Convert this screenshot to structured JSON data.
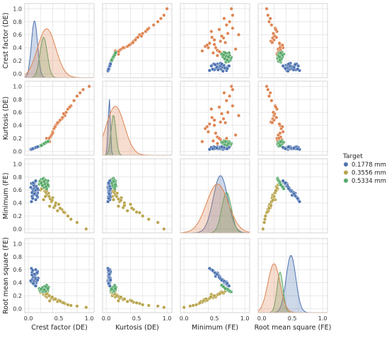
{
  "chart_data": {
    "type": "pairplot",
    "variables": [
      "Crest factor (DE)",
      "Kurtosis (DE)",
      "Minimum (FE)",
      "Root mean square (FE)"
    ],
    "ticks": [
      0.0,
      0.2,
      0.4,
      0.6,
      0.8,
      1.0
    ],
    "xtick_labels": [
      "0.0",
      "0.5",
      "1.0"
    ],
    "ytick_labels": [
      "0.0",
      "0.2",
      "0.4",
      "0.6",
      "0.8",
      "1.0"
    ],
    "range": [
      -0.06,
      1.08
    ],
    "grid": true,
    "legend_placement": "right",
    "legend": {
      "title": "Target",
      "entries": [
        {
          "label": "0.1778 mm",
          "color": "#4c72b0"
        },
        {
          "label": "0.3556 mm",
          "color": "#b8a44c"
        },
        {
          "label": "0.5334 mm",
          "color": "#55a868"
        }
      ]
    },
    "diag_color_map": [
      "#4c72b0",
      "#dd8452",
      "#55a868"
    ],
    "series": [
      {
        "name": "0.1778 mm",
        "color": "#4c72b0",
        "mean": [
          0.1,
          0.05,
          0.6,
          0.48
        ],
        "sd": [
          0.05,
          0.018,
          0.12,
          0.08
        ],
        "points": [
          [
            0.08,
            0.05,
            0.52,
            0.5
          ],
          [
            0.12,
            0.06,
            0.6,
            0.47
          ],
          [
            0.05,
            0.04,
            0.7,
            0.41
          ],
          [
            0.15,
            0.07,
            0.55,
            0.55
          ],
          [
            0.1,
            0.05,
            0.63,
            0.44
          ],
          [
            0.07,
            0.04,
            0.48,
            0.58
          ],
          [
            0.13,
            0.06,
            0.66,
            0.4
          ],
          [
            0.09,
            0.05,
            0.58,
            0.5
          ],
          [
            0.11,
            0.05,
            0.72,
            0.36
          ],
          [
            0.06,
            0.04,
            0.5,
            0.56
          ],
          [
            0.14,
            0.07,
            0.62,
            0.45
          ],
          [
            0.1,
            0.05,
            0.55,
            0.52
          ],
          [
            0.08,
            0.04,
            0.68,
            0.42
          ],
          [
            0.12,
            0.06,
            0.45,
            0.6
          ],
          [
            0.16,
            0.07,
            0.6,
            0.47
          ],
          [
            0.04,
            0.03,
            0.64,
            0.43
          ],
          [
            0.11,
            0.05,
            0.57,
            0.51
          ],
          [
            0.09,
            0.05,
            0.7,
            0.38
          ],
          [
            0.13,
            0.06,
            0.53,
            0.54
          ],
          [
            0.07,
            0.04,
            0.61,
            0.46
          ],
          [
            0.1,
            0.05,
            0.66,
            0.41
          ],
          [
            0.15,
            0.07,
            0.49,
            0.57
          ],
          [
            0.08,
            0.04,
            0.59,
            0.49
          ],
          [
            0.12,
            0.06,
            0.74,
            0.35
          ],
          [
            0.06,
            0.04,
            0.56,
            0.52
          ],
          [
            0.1,
            0.05,
            0.63,
            0.45
          ],
          [
            0.14,
            0.06,
            0.51,
            0.55
          ],
          [
            0.09,
            0.05,
            0.67,
            0.42
          ],
          [
            0.11,
            0.05,
            0.58,
            0.48
          ],
          [
            0.05,
            0.03,
            0.42,
            0.62
          ],
          [
            0.13,
            0.06,
            0.65,
            0.43
          ],
          [
            0.1,
            0.05,
            0.54,
            0.53
          ],
          [
            0.08,
            0.04,
            0.71,
            0.39
          ],
          [
            0.12,
            0.06,
            0.6,
            0.46
          ],
          [
            0.07,
            0.04,
            0.47,
            0.59
          ],
          [
            0.15,
            0.07,
            0.62,
            0.44
          ]
        ]
      },
      {
        "name": "0.3556 mm",
        "color": "#b8a44c",
        "mean": [
          0.3,
          0.15,
          0.55,
          0.2
        ],
        "sd": [
          0.15,
          0.15,
          0.18,
          0.1
        ],
        "points": [
          [
            0.25,
            0.12,
            0.45,
            0.22
          ],
          [
            0.3,
            0.15,
            0.52,
            0.18
          ],
          [
            0.45,
            0.3,
            0.4,
            0.15
          ],
          [
            0.2,
            0.08,
            0.6,
            0.25
          ],
          [
            0.35,
            0.2,
            0.35,
            0.12
          ],
          [
            0.55,
            0.45,
            0.3,
            0.1
          ],
          [
            0.28,
            0.1,
            0.5,
            0.2
          ],
          [
            0.4,
            0.25,
            0.48,
            0.17
          ],
          [
            0.22,
            0.09,
            0.62,
            0.26
          ],
          [
            0.6,
            0.55,
            0.25,
            0.08
          ],
          [
            0.33,
            0.18,
            0.55,
            0.21
          ],
          [
            0.5,
            0.4,
            0.38,
            0.13
          ],
          [
            0.27,
            0.11,
            0.58,
            0.23
          ],
          [
            0.38,
            0.22,
            0.42,
            0.16
          ],
          [
            0.65,
            0.6,
            0.2,
            0.06
          ],
          [
            0.31,
            0.14,
            0.65,
            0.24
          ],
          [
            0.42,
            0.28,
            0.33,
            0.14
          ],
          [
            0.24,
            0.09,
            0.7,
            0.28
          ],
          [
            0.7,
            0.7,
            0.15,
            0.05
          ],
          [
            0.36,
            0.2,
            0.46,
            0.19
          ],
          [
            0.29,
            0.13,
            0.56,
            0.22
          ],
          [
            0.48,
            0.35,
            0.28,
            0.11
          ],
          [
            0.26,
            0.1,
            0.63,
            0.25
          ],
          [
            0.8,
            0.85,
            0.1,
            0.04
          ],
          [
            0.34,
            0.17,
            0.5,
            0.2
          ],
          [
            0.44,
            0.3,
            0.36,
            0.15
          ],
          [
            0.23,
            0.08,
            0.68,
            0.27
          ],
          [
            0.52,
            0.42,
            0.32,
            0.12
          ],
          [
            0.39,
            0.24,
            0.44,
            0.18
          ],
          [
            0.95,
            0.95,
            0.0,
            0.02
          ],
          [
            0.3,
            0.14,
            0.59,
            0.23
          ],
          [
            0.58,
            0.5,
            0.26,
            0.09
          ]
        ]
      },
      {
        "name": "0.5334 mm",
        "color": "#55a868",
        "mean": [
          0.25,
          0.12,
          0.7,
          0.3
        ],
        "sd": [
          0.06,
          0.04,
          0.08,
          0.05
        ],
        "points": [
          [
            0.22,
            0.1,
            0.68,
            0.32
          ],
          [
            0.26,
            0.12,
            0.72,
            0.29
          ],
          [
            0.3,
            0.14,
            0.65,
            0.34
          ],
          [
            0.2,
            0.09,
            0.75,
            0.27
          ],
          [
            0.28,
            0.13,
            0.7,
            0.3
          ],
          [
            0.24,
            0.11,
            0.66,
            0.33
          ],
          [
            0.32,
            0.15,
            0.74,
            0.28
          ],
          [
            0.18,
            0.08,
            0.69,
            0.31
          ],
          [
            0.25,
            0.12,
            0.78,
            0.26
          ],
          [
            0.29,
            0.14,
            0.63,
            0.35
          ],
          [
            0.23,
            0.1,
            0.71,
            0.3
          ],
          [
            0.27,
            0.13,
            0.67,
            0.32
          ],
          [
            0.21,
            0.09,
            0.76,
            0.27
          ],
          [
            0.31,
            0.15,
            0.7,
            0.29
          ],
          [
            0.26,
            0.12,
            0.64,
            0.34
          ],
          [
            0.19,
            0.08,
            0.73,
            0.28
          ],
          [
            0.28,
            0.13,
            0.68,
            0.31
          ],
          [
            0.24,
            0.11,
            0.77,
            0.26
          ],
          [
            0.33,
            0.16,
            0.66,
            0.33
          ],
          [
            0.22,
            0.1,
            0.72,
            0.3
          ],
          [
            0.27,
            0.12,
            0.69,
            0.31
          ],
          [
            0.25,
            0.11,
            0.74,
            0.28
          ],
          [
            0.3,
            0.14,
            0.62,
            0.36
          ],
          [
            0.2,
            0.09,
            0.7,
            0.3
          ],
          [
            0.28,
            0.13,
            0.75,
            0.27
          ],
          [
            0.23,
            0.1,
            0.67,
            0.32
          ],
          [
            0.26,
            0.12,
            0.73,
            0.29
          ],
          [
            0.29,
            0.14,
            0.65,
            0.34
          ],
          [
            0.21,
            0.09,
            0.71,
            0.3
          ],
          [
            0.32,
            0.15,
            0.68,
            0.31
          ]
        ]
      },
      {
        "name": "",
        "color": "#dd8452",
        "mean": [
          0.35,
          0.25,
          0.5,
          0.2
        ],
        "sd": [
          0.2,
          0.25,
          0.25,
          0.12
        ],
        "points": [
          [
            0.3,
            0.2,
            0.7,
            0.25
          ],
          [
            0.45,
            0.4,
            0.5,
            0.3
          ],
          [
            0.6,
            0.55,
            0.9,
            0.2
          ],
          [
            0.35,
            0.15,
            0.3,
            0.28
          ],
          [
            0.5,
            0.45,
            0.6,
            0.15
          ],
          [
            0.7,
            0.7,
            0.8,
            0.22
          ],
          [
            0.4,
            0.3,
            0.4,
            0.35
          ],
          [
            0.55,
            0.5,
            0.65,
            0.18
          ],
          [
            0.28,
            0.12,
            0.55,
            0.3
          ],
          [
            0.65,
            0.65,
            0.45,
            0.25
          ],
          [
            0.8,
            0.85,
            0.75,
            0.12
          ],
          [
            0.42,
            0.35,
            0.35,
            0.32
          ],
          [
            0.38,
            0.25,
            0.85,
            0.27
          ],
          [
            0.52,
            0.48,
            0.5,
            0.2
          ],
          [
            0.33,
            0.18,
            0.6,
            0.33
          ],
          [
            0.75,
            0.78,
            0.7,
            0.16
          ],
          [
            0.47,
            0.42,
            0.42,
            0.29
          ],
          [
            0.9,
            0.95,
            0.8,
            0.1
          ],
          [
            0.36,
            0.22,
            0.55,
            0.31
          ],
          [
            0.58,
            0.58,
            0.62,
            0.21
          ],
          [
            0.32,
            0.16,
            0.48,
            0.26
          ],
          [
            0.62,
            0.6,
            0.72,
            0.19
          ],
          [
            0.44,
            0.38,
            0.38,
            0.34
          ],
          [
            0.68,
            0.68,
            0.58,
            0.23
          ],
          [
            0.85,
            0.9,
            0.66,
            0.14
          ],
          [
            0.4,
            0.28,
            0.52,
            0.3
          ],
          [
            0.56,
            0.52,
            0.46,
            0.24
          ],
          [
            0.48,
            0.44,
            0.68,
            0.17
          ],
          [
            0.34,
            0.2,
            0.58,
            0.28
          ],
          [
            1.0,
            1.0,
            0.78,
            0.08
          ]
        ]
      }
    ]
  }
}
